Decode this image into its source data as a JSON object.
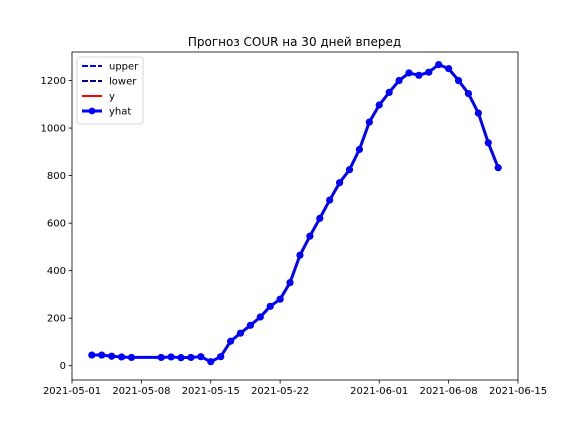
{
  "chart_data": {
    "type": "line",
    "title": "Прогноз COUR на 30 дней вперед",
    "xlabel": "",
    "ylabel": "",
    "x_type": "date",
    "xlim": [
      "2021-05-01",
      "2021-06-15"
    ],
    "ylim": [
      -60,
      1320
    ],
    "x_ticks": [
      {
        "value": "2021-05-01",
        "label": "2021-05-01"
      },
      {
        "value": "2021-05-08",
        "label": "2021-05-08"
      },
      {
        "value": "2021-05-15",
        "label": "2021-05-15"
      },
      {
        "value": "2021-05-22",
        "label": "2021-05-22"
      },
      {
        "value": "2021-06-01",
        "label": "2021-06-01"
      },
      {
        "value": "2021-06-08",
        "label": "2021-06-08"
      },
      {
        "value": "2021-06-15",
        "label": "2021-06-15"
      }
    ],
    "y_ticks": [
      0,
      200,
      400,
      600,
      800,
      1000,
      1200
    ],
    "grid": false,
    "legend_position": "top-left",
    "series": [
      {
        "name": "upper",
        "color": "#0000ff",
        "style": "dashed",
        "points": []
      },
      {
        "name": "lower",
        "color": "#00008b",
        "style": "dashed",
        "points": []
      },
      {
        "name": "y",
        "color": "#ff0000",
        "style": "solid",
        "points": []
      },
      {
        "name": "yhat",
        "color": "#0000ff",
        "style": "solid",
        "markers": true,
        "points": [
          {
            "x": "2021-05-03",
            "y": 45
          },
          {
            "x": "2021-05-04",
            "y": 45
          },
          {
            "x": "2021-05-05",
            "y": 40
          },
          {
            "x": "2021-05-06",
            "y": 37
          },
          {
            "x": "2021-05-07",
            "y": 35
          },
          {
            "x": "2021-05-10",
            "y": 35
          },
          {
            "x": "2021-05-11",
            "y": 37
          },
          {
            "x": "2021-05-12",
            "y": 34
          },
          {
            "x": "2021-05-13",
            "y": 35
          },
          {
            "x": "2021-05-14",
            "y": 38
          },
          {
            "x": "2021-05-15",
            "y": 17
          },
          {
            "x": "2021-05-16",
            "y": 38
          },
          {
            "x": "2021-05-17",
            "y": 103
          },
          {
            "x": "2021-05-18",
            "y": 137
          },
          {
            "x": "2021-05-19",
            "y": 170
          },
          {
            "x": "2021-05-20",
            "y": 205
          },
          {
            "x": "2021-05-21",
            "y": 250
          },
          {
            "x": "2021-05-22",
            "y": 280
          },
          {
            "x": "2021-05-23",
            "y": 350
          },
          {
            "x": "2021-05-24",
            "y": 465
          },
          {
            "x": "2021-05-25",
            "y": 545
          },
          {
            "x": "2021-05-26",
            "y": 620
          },
          {
            "x": "2021-05-27",
            "y": 697
          },
          {
            "x": "2021-05-28",
            "y": 770
          },
          {
            "x": "2021-05-29",
            "y": 825
          },
          {
            "x": "2021-05-30",
            "y": 910
          },
          {
            "x": "2021-05-31",
            "y": 1025
          },
          {
            "x": "2021-06-01",
            "y": 1097
          },
          {
            "x": "2021-06-02",
            "y": 1150
          },
          {
            "x": "2021-06-03",
            "y": 1200
          },
          {
            "x": "2021-06-04",
            "y": 1232
          },
          {
            "x": "2021-06-05",
            "y": 1222
          },
          {
            "x": "2021-06-06",
            "y": 1235
          },
          {
            "x": "2021-06-07",
            "y": 1267
          },
          {
            "x": "2021-06-08",
            "y": 1250
          },
          {
            "x": "2021-06-09",
            "y": 1200
          },
          {
            "x": "2021-06-10",
            "y": 1145
          },
          {
            "x": "2021-06-11",
            "y": 1063
          },
          {
            "x": "2021-06-12",
            "y": 938
          },
          {
            "x": "2021-06-13",
            "y": 833
          }
        ]
      }
    ]
  }
}
